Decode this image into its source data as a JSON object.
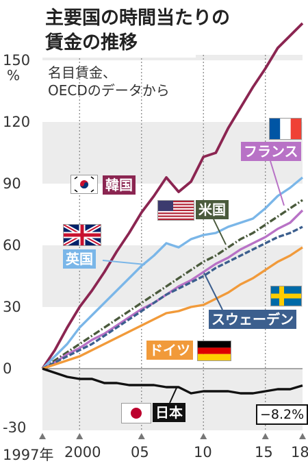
{
  "title_line1": "主要国の時間当たりの",
  "title_line2": "賃金の推移",
  "subtitle_line1": "名目賃金、",
  "subtitle_line2": "OECDのデータから",
  "y_unit": "%",
  "x_tick_labels": [
    "1997年",
    "2000",
    "05",
    "10",
    "15",
    "18"
  ],
  "japan_end_label": "−8.2%",
  "chart_data": {
    "type": "line",
    "x": [
      1997,
      1998,
      1999,
      2000,
      2001,
      2002,
      2003,
      2004,
      2005,
      2006,
      2007,
      2008,
      2009,
      2010,
      2011,
      2012,
      2013,
      2014,
      2015,
      2016,
      2017,
      2018
    ],
    "ylim": [
      -30,
      165
    ],
    "yticks": [
      -30,
      0,
      30,
      60,
      90,
      120,
      150
    ],
    "ytick_labels": [
      "-30",
      "0",
      "30",
      "60",
      "90",
      "120",
      "150"
    ],
    "grid": "shaded bands every 30 points, dotted vertical lines at 2000, 2005, 2010, 2015",
    "series": [
      {
        "name": "韓国",
        "color": "#8b2551",
        "values": [
          0,
          9,
          20,
          30,
          38,
          47,
          57,
          66,
          76,
          84,
          93,
          86,
          91,
          103,
          105,
          117,
          127,
          137,
          146,
          156,
          162,
          168
        ]
      },
      {
        "name": "米国",
        "color": "#4a5a3c",
        "values": [
          0,
          4,
          8,
          12,
          16,
          20,
          24,
          28,
          32,
          36,
          40,
          44,
          48,
          52,
          55,
          59,
          63,
          66,
          70,
          74,
          78,
          82
        ]
      },
      {
        "name": "英国",
        "color": "#7ab6e8",
        "values": [
          0,
          6,
          12,
          20,
          26,
          32,
          38,
          44,
          50,
          55,
          61,
          59,
          63,
          65,
          66,
          69,
          71,
          73,
          78,
          84,
          88,
          93
        ]
      },
      {
        "name": "フランス",
        "color": "#b872c6",
        "values": [
          0,
          3,
          7,
          10,
          14,
          17,
          21,
          25,
          29,
          32,
          36,
          40,
          43,
          47,
          51,
          54,
          58,
          61,
          64,
          68,
          71,
          77
        ]
      },
      {
        "name": "スウェーデン",
        "color": "#3c5f8e",
        "values": [
          0,
          3,
          6,
          9,
          12,
          16,
          20,
          24,
          28,
          32,
          36,
          39,
          42,
          45,
          49,
          52,
          55,
          58,
          61,
          64,
          66,
          69
        ]
      },
      {
        "name": "ドイツ",
        "color": "#f19a3a",
        "values": [
          0,
          2,
          4,
          6,
          9,
          12,
          15,
          18,
          21,
          24,
          27,
          28,
          30,
          31,
          34,
          37,
          41,
          44,
          48,
          52,
          55,
          59
        ]
      },
      {
        "name": "日本",
        "color": "#111111",
        "values": [
          0,
          -2,
          -4,
          -5,
          -5,
          -7,
          -7,
          -8,
          -8,
          -8,
          -9,
          -9,
          -12,
          -11,
          -11,
          -11,
          -12,
          -12,
          -11,
          -10,
          -10,
          -8.2
        ]
      }
    ]
  },
  "labels": {
    "korea": "韓国",
    "us": "米国",
    "uk": "英国",
    "france": "フランス",
    "sweden": "スウェーデン",
    "germany": "ドイツ",
    "japan": "日本"
  },
  "colors": {
    "korea": "#8b2551",
    "us": "#4a5a3c",
    "uk": "#7ab6e8",
    "france": "#b872c6",
    "sweden": "#3c5f8e",
    "germany": "#f19a3a",
    "japan": "#111111",
    "band": "#ececec"
  }
}
